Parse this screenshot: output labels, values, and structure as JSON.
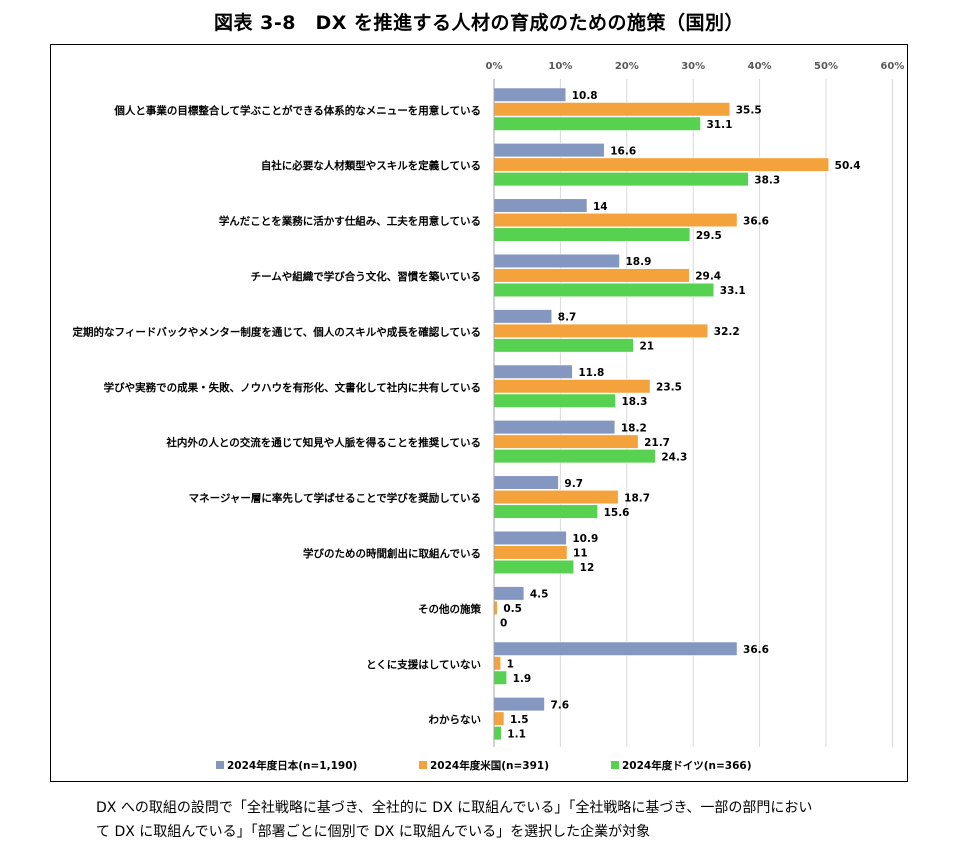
{
  "page": {
    "title": "図表 3-8　DX を推進する人材の育成のための施策（国別）",
    "note_lines": [
      "DX への取組の設問で「全社戦略に基づき、全社的に DX に取組んでいる」「全社戦略に基づき、一部の部門におい",
      "て DX に取組んでいる」「部署ごとに個別で DX に取組んでいる」を選択した企業が対象"
    ]
  },
  "chart_data": {
    "type": "bar",
    "orientation": "horizontal",
    "xlim": [
      0,
      60
    ],
    "x_ticks": [
      0,
      10,
      20,
      30,
      40,
      50,
      60
    ],
    "x_tick_labels": [
      "0%",
      "10%",
      "20%",
      "30%",
      "40%",
      "50%",
      "60%"
    ],
    "grid": "vertical",
    "legend_position": "bottom",
    "categories": [
      "個人と事業の目標整合して学ぶことができる体系的なメニューを用意している",
      "自社に必要な人材類型やスキルを定義している",
      "学んだことを業務に活かす仕組み、工夫を用意している",
      "チームや組織で学び合う文化、習慣を築いている",
      "定期的なフィードバックやメンター制度を通じて、個人のスキルや成長を確認している",
      "学びや実務での成果・失敗、ノウハウを有形化、文書化して社内に共有している",
      "社内外の人との交流を通じて知見や人脈を得ることを推奨している",
      "マネージャー層に率先して学ばせることで学びを奨励している",
      "学びのための時間創出に取組んでいる",
      "その他の施策",
      "とくに支援はしていない",
      "わからない"
    ],
    "series": [
      {
        "name": "2024年度日本(n=1,190)",
        "color": "#8497c0",
        "values": [
          10.8,
          16.6,
          14,
          18.9,
          8.7,
          11.8,
          18.2,
          9.7,
          10.9,
          4.5,
          36.6,
          7.6
        ],
        "labels": [
          "10.8",
          "16.6",
          "14",
          "18.9",
          "8.7",
          "11.8",
          "18.2",
          "9.7",
          "10.9",
          "4.5",
          "36.6",
          "7.6"
        ]
      },
      {
        "name": "2024年度米国(n=391)",
        "color": "#f4a23c",
        "values": [
          35.5,
          50.4,
          36.6,
          29.4,
          32.2,
          23.5,
          21.7,
          18.7,
          11,
          0.5,
          1,
          1.5
        ],
        "labels": [
          "35.5",
          "50.4",
          "36.6",
          "29.4",
          "32.2",
          "23.5",
          "21.7",
          "18.7",
          "11",
          "0.5",
          "1",
          "1.5"
        ]
      },
      {
        "name": "2024年度ドイツ(n=366)",
        "color": "#57d150",
        "values": [
          31.1,
          38.3,
          29.5,
          33.1,
          21,
          18.3,
          24.3,
          15.6,
          12,
          0,
          1.9,
          1.1
        ],
        "labels": [
          "31.1",
          "38.3",
          "29.5",
          "33.1",
          "21",
          "18.3",
          "24.3",
          "15.6",
          "12",
          "0",
          "1.9",
          "1.1"
        ]
      }
    ]
  }
}
